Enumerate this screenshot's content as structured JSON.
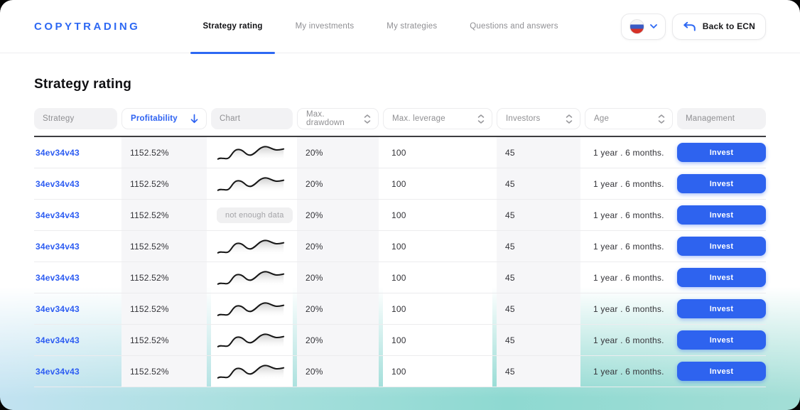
{
  "brand": "COPYTRADING",
  "nav": {
    "items": [
      {
        "label": "Strategy rating",
        "active": true
      },
      {
        "label": "My investments",
        "active": false
      },
      {
        "label": "My strategies",
        "active": false
      },
      {
        "label": "Questions and answers",
        "active": false
      }
    ]
  },
  "header_actions": {
    "language": {
      "flag_icon": "russian-flag",
      "chevron_icon": "chevron-down"
    },
    "back_label": "Back to ECN"
  },
  "page": {
    "title": "Strategy rating"
  },
  "table": {
    "columns": [
      {
        "label": "Strategy",
        "sortable": false
      },
      {
        "label": "Profitability",
        "sortable": true,
        "sorted": "desc"
      },
      {
        "label": "Chart",
        "sortable": false
      },
      {
        "label": "Max. drawdown",
        "sortable": true
      },
      {
        "label": "Max. leverage",
        "sortable": true
      },
      {
        "label": "Investors",
        "sortable": true
      },
      {
        "label": "Age",
        "sortable": true
      },
      {
        "label": "Management",
        "sortable": false
      }
    ],
    "not_enough_data_label": "not enough data",
    "invest_label": "Invest",
    "rows": [
      {
        "strategy": "34ev34v43",
        "profitability": "1152.52%",
        "chart": "sparkline",
        "drawdown": "20%",
        "leverage": "100",
        "investors": "45",
        "age": "1 year . 6 months."
      },
      {
        "strategy": "34ev34v43",
        "profitability": "1152.52%",
        "chart": "sparkline",
        "drawdown": "20%",
        "leverage": "100",
        "investors": "45",
        "age": "1 year . 6 months."
      },
      {
        "strategy": "34ev34v43",
        "profitability": "1152.52%",
        "chart": "none",
        "drawdown": "20%",
        "leverage": "100",
        "investors": "45",
        "age": "1 year . 6 months."
      },
      {
        "strategy": "34ev34v43",
        "profitability": "1152.52%",
        "chart": "sparkline",
        "drawdown": "20%",
        "leverage": "100",
        "investors": "45",
        "age": "1 year . 6 months."
      },
      {
        "strategy": "34ev34v43",
        "profitability": "1152.52%",
        "chart": "sparkline",
        "drawdown": "20%",
        "leverage": "100",
        "investors": "45",
        "age": "1 year . 6 months."
      },
      {
        "strategy": "34ev34v43",
        "profitability": "1152.52%",
        "chart": "sparkline",
        "drawdown": "20%",
        "leverage": "100",
        "investors": "45",
        "age": "1 year . 6 months."
      },
      {
        "strategy": "34ev34v43",
        "profitability": "1152.52%",
        "chart": "sparkline",
        "drawdown": "20%",
        "leverage": "100",
        "investors": "45",
        "age": "1 year . 6 months."
      },
      {
        "strategy": "34ev34v43",
        "profitability": "1152.52%",
        "chart": "sparkline",
        "drawdown": "20%",
        "leverage": "100",
        "investors": "45",
        "age": "1 year . 6 months."
      }
    ]
  },
  "colors": {
    "accent": "#2d68f3",
    "invest_button": "#2e63ef",
    "stripe_cell": "#f6f6f8",
    "gradient_left": "#c6e3f4",
    "gradient_mid": "#8ed9d1",
    "table_top_border": "#3d3d40"
  }
}
